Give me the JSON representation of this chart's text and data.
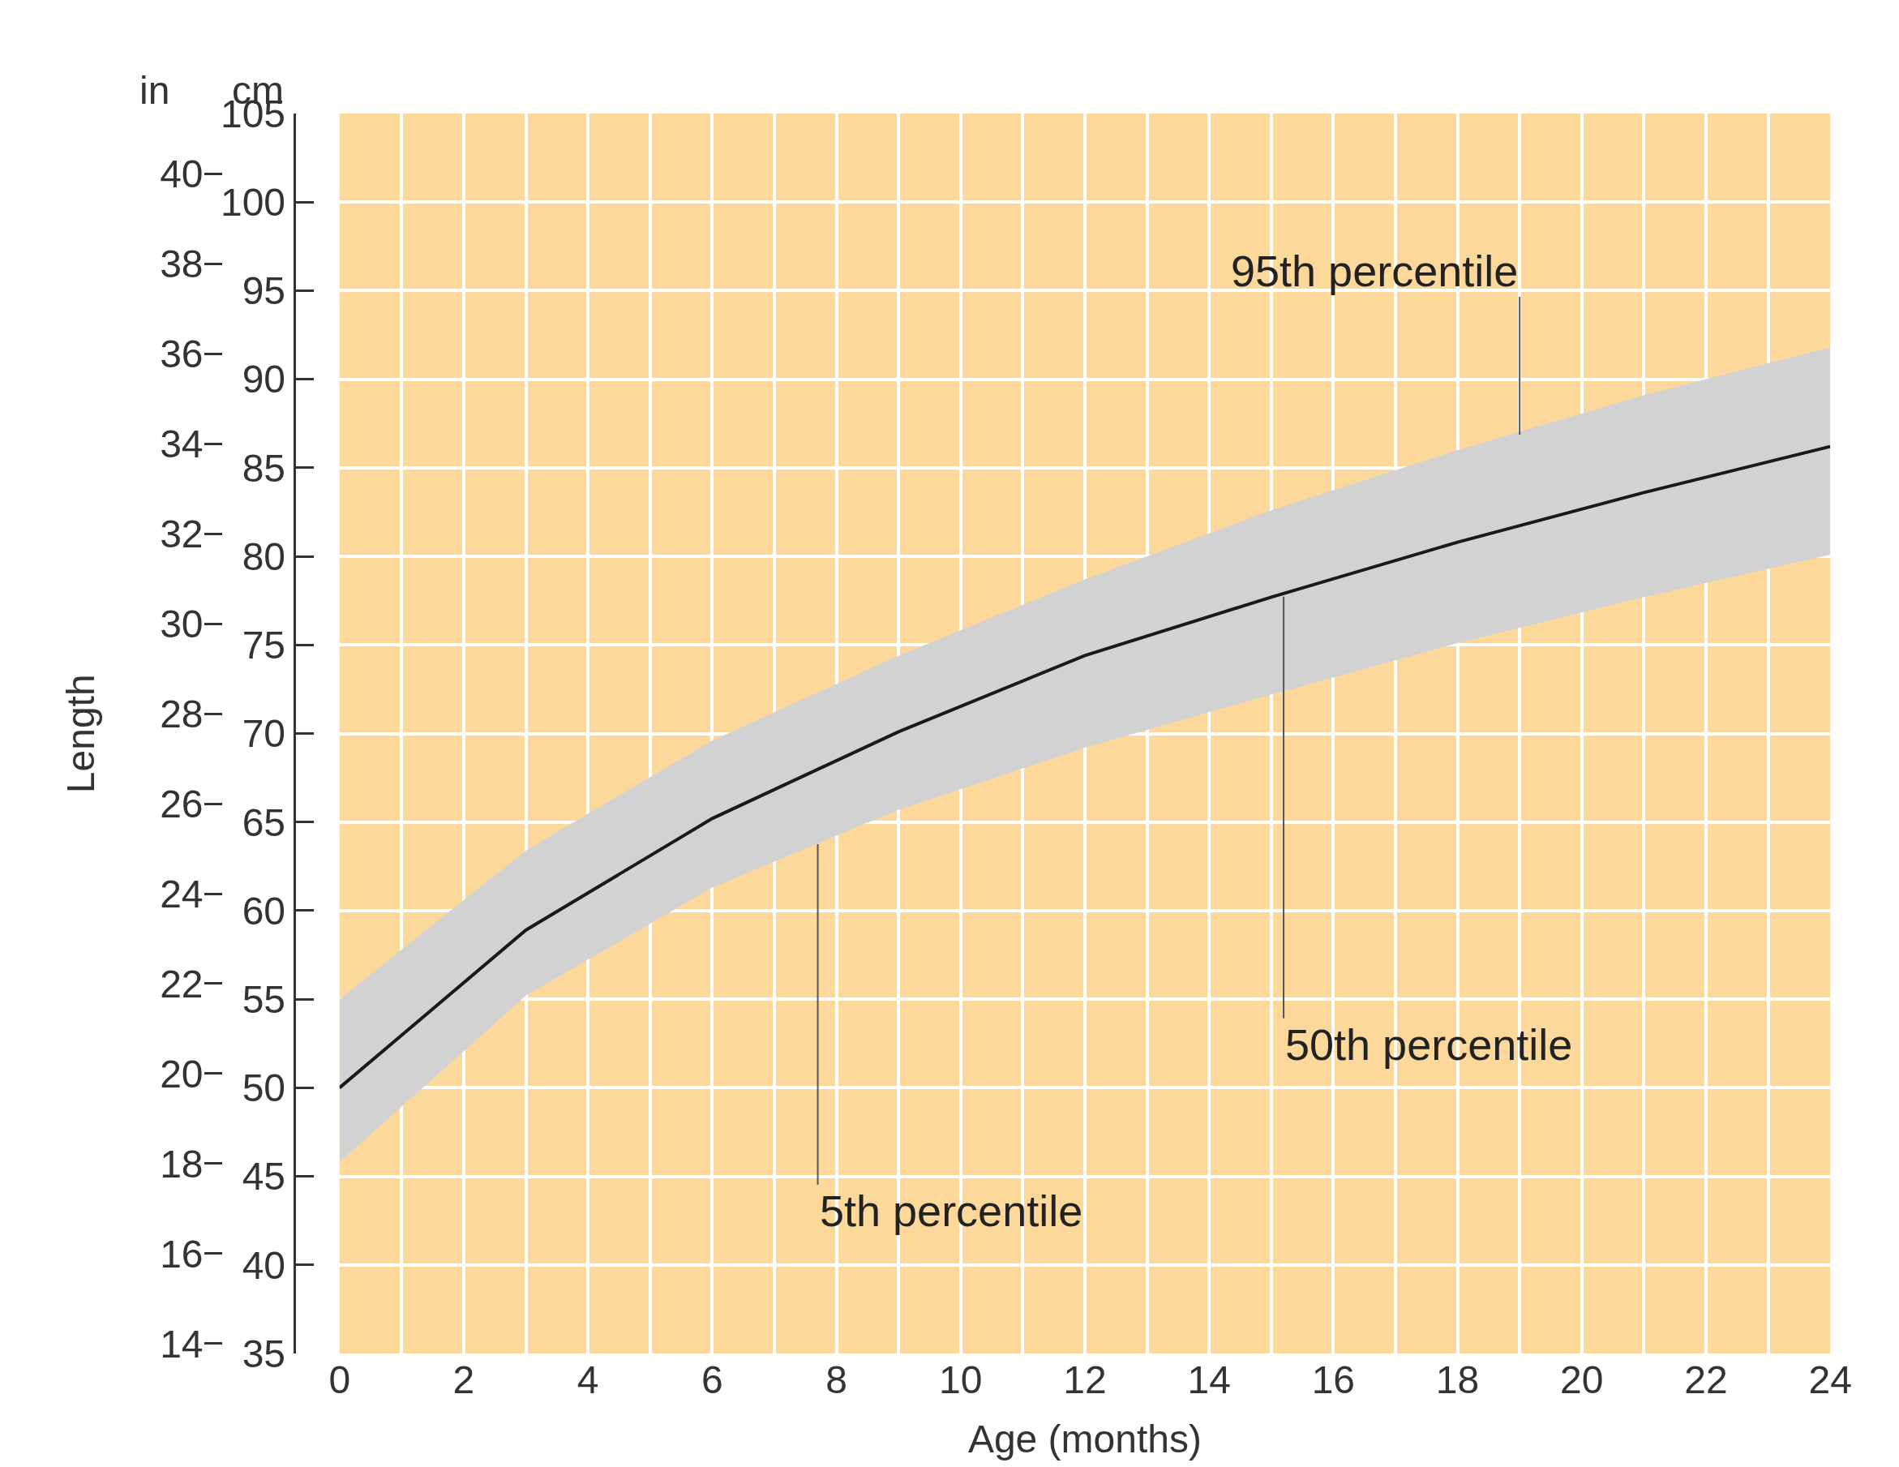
{
  "chart_data": {
    "type": "line",
    "xlabel": "Age (months)",
    "ylabel": "Length",
    "y2label": "cm",
    "x": [
      0,
      3,
      6,
      9,
      12,
      15,
      18,
      21,
      24
    ],
    "series": [
      {
        "color": "#1a1a1a",
        "axis": "y2",
        "values": [
          50,
          58.9,
          65.2,
          70.1,
          74.4,
          77.7,
          80.8,
          83.6,
          86.2
        ],
        "lower": [
          45.8,
          55.2,
          61.3,
          65.7,
          69.2,
          72.2,
          75.1,
          77.7,
          80.1
        ],
        "upper": [
          55,
          63.4,
          69.6,
          74.4,
          78.7,
          82.6,
          86,
          89.1,
          91.8
        ]
      }
    ],
    "xlim": [
      0,
      24
    ],
    "xticks": [
      0,
      {
        "value": 1,
        "label": null
      },
      2,
      {
        "value": 3,
        "label": null
      },
      4,
      {
        "value": 5,
        "label": null
      },
      6,
      {
        "value": 7,
        "label": null
      },
      8,
      {
        "value": 9,
        "label": null
      },
      10,
      {
        "value": 11,
        "label": null
      },
      12,
      {
        "value": 13,
        "label": null
      },
      14,
      {
        "value": 15,
        "label": null
      },
      16,
      {
        "value": 17,
        "label": null
      },
      18,
      {
        "value": 19,
        "label": null
      },
      20,
      {
        "value": 21,
        "label": null
      },
      22,
      {
        "value": 23,
        "label": null
      },
      24
    ],
    "ylim": [
      13.78,
      41.34
    ],
    "yticks": [
      14,
      16,
      18,
      20,
      22,
      24,
      26,
      28,
      30,
      32,
      34,
      36,
      38,
      40
    ],
    "y2lim": [
      35,
      105
    ],
    "y2ticks": [
      35,
      40,
      45,
      50,
      55,
      60,
      65,
      70,
      75,
      80,
      85,
      90,
      95,
      100,
      105
    ],
    "grid": true,
    "annotations": [
      "in",
      {
        "text": "95th percentile",
        "x": 19,
        "y": 34.2
      },
      {
        "text": "50th percentile",
        "x": 15.2,
        "y": 30.6
      },
      {
        "text": "5th percentile",
        "x": 7.7,
        "y": 25.1
      }
    ]
  }
}
